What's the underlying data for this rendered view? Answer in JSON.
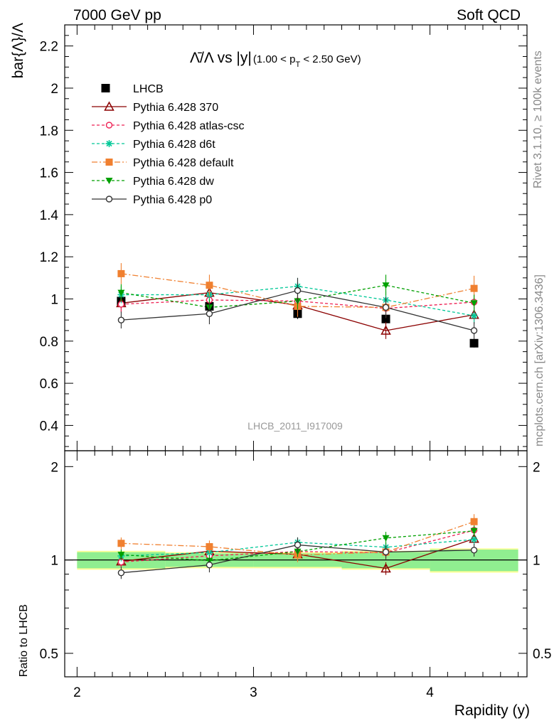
{
  "header": {
    "left": "7000 GeV pp",
    "right": "Soft QCD"
  },
  "side": {
    "rivet": "Rivet 3.1.10, ≥ 100k events",
    "mcplots": "mcplots.cern.ch [arXiv:1306.3436]"
  },
  "watermark": "LHCB_2011_I917009",
  "colors": {
    "band_inner": "#90ee90",
    "band_outer": "#ffff99"
  },
  "chart_data": {
    "type": "line",
    "title_main": "Λ̄/Λ vs |y|",
    "title_cut": "(1.00 < p",
    "title_sub": "T",
    "title_cut_end": " < 2.50 GeV)",
    "ylabel": "bar{Λ}/Λ",
    "xlabel": "Rapidity (y)",
    "ratio_ylabel": "Ratio to LHCB",
    "xlim": [
      1.93,
      4.55
    ],
    "ylim": [
      0.28,
      2.3
    ],
    "ratio_ylim": [
      0.42,
      2.25
    ],
    "x_ticks": [
      "2",
      "3",
      "4"
    ],
    "y_ticks": [
      "0.4",
      "0.6",
      "0.8",
      "1",
      "1.2",
      "1.4",
      "1.6",
      "1.8",
      "2",
      "2.2"
    ],
    "ratio_ticks": [
      "0.5",
      "1",
      "2"
    ],
    "x_bin_edges": [
      2.0,
      2.5,
      3.0,
      3.5,
      4.0,
      4.5
    ],
    "x": [
      2.25,
      2.75,
      3.25,
      3.75,
      4.25
    ],
    "data": {
      "name": "LHCB",
      "values": [
        0.99,
        0.965,
        0.93,
        0.905,
        0.79
      ],
      "errors": [
        0.025,
        0.025,
        0.025,
        0.02,
        0.02
      ],
      "band_inner": [
        0.06,
        0.05,
        0.05,
        0.06,
        0.08
      ],
      "band_outer": [
        0.07,
        0.06,
        0.06,
        0.07,
        0.09
      ]
    },
    "series": [
      {
        "name": "Pythia 6.428 370",
        "color": "#8b0000",
        "marker": "triangle-open",
        "dash": "",
        "values": [
          0.98,
          1.03,
          0.97,
          0.85,
          0.925
        ],
        "errors": [
          0.04,
          0.04,
          0.04,
          0.04,
          0.04
        ]
      },
      {
        "name": "Pythia 6.428 atlas-csc",
        "color": "#ee2255",
        "marker": "circle-open",
        "dash": "4,3",
        "values": [
          0.975,
          0.995,
          0.99,
          0.955,
          0.985
        ],
        "errors": [
          0.04,
          0.04,
          0.04,
          0.04,
          0.04
        ]
      },
      {
        "name": "Pythia 6.428 d6t",
        "color": "#00c897",
        "marker": "star",
        "dash": "4,3",
        "values": [
          1.02,
          1.02,
          1.06,
          0.995,
          0.92
        ],
        "errors": [
          0.04,
          0.04,
          0.04,
          0.04,
          0.04
        ]
      },
      {
        "name": "Pythia 6.428 default",
        "color": "#f08030",
        "marker": "square",
        "dash": "8,3,2,3",
        "values": [
          1.12,
          1.065,
          0.965,
          0.96,
          1.05
        ],
        "errors": [
          0.05,
          0.05,
          0.05,
          0.05,
          0.06
        ]
      },
      {
        "name": "Pythia 6.428 dw",
        "color": "#00a000",
        "marker": "triangle-down",
        "dash": "4,3",
        "values": [
          1.03,
          0.96,
          0.99,
          1.065,
          0.98
        ],
        "errors": [
          0.04,
          0.04,
          0.04,
          0.05,
          0.04
        ]
      },
      {
        "name": "Pythia 6.428 p0",
        "color": "#333333",
        "marker": "circle-open",
        "dash": "",
        "values": [
          0.9,
          0.93,
          1.04,
          0.96,
          0.85
        ],
        "errors": [
          0.04,
          0.05,
          0.06,
          0.05,
          0.04
        ]
      }
    ],
    "legend": [
      {
        "name": "LHCB",
        "marker": "data"
      },
      {
        "name": "Pythia 6.428 370"
      },
      {
        "name": "Pythia 6.428 atlas-csc"
      },
      {
        "name": "Pythia 6.428 d6t"
      },
      {
        "name": "Pythia 6.428 default"
      },
      {
        "name": "Pythia 6.428 dw"
      },
      {
        "name": "Pythia 6.428 p0"
      }
    ],
    "legend_position": "top-left"
  }
}
